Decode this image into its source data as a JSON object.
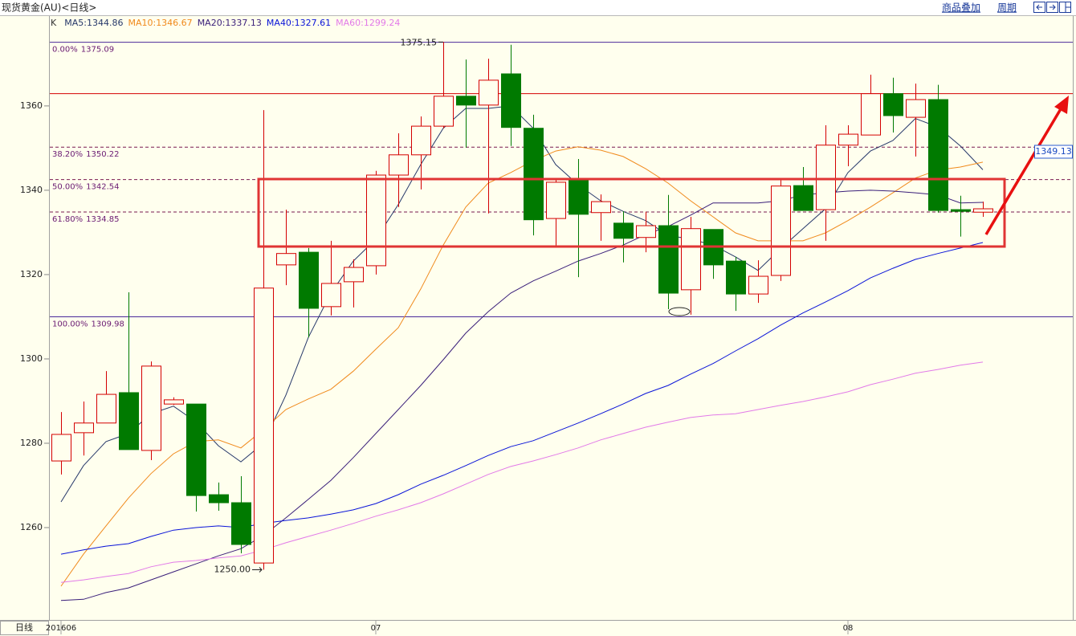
{
  "chart_data": {
    "type": "candlestick",
    "title": "现货黄金(AU)<日线>",
    "period_label": "日线",
    "toolbar": [
      "商品叠加",
      "周期"
    ],
    "legend_prefix": "K",
    "legend_sep": ":",
    "categories": [
      "201606",
      null,
      null,
      null,
      null,
      null,
      null,
      null,
      null,
      null,
      null,
      null,
      null,
      null,
      "07",
      null,
      null,
      null,
      null,
      null,
      null,
      null,
      null,
      null,
      null,
      null,
      null,
      null,
      null,
      null,
      null,
      null,
      null,
      null,
      null,
      "08",
      null,
      null,
      null,
      null,
      null,
      null
    ],
    "open": [
      1275.8,
      1282.5,
      1284.8,
      1292.0,
      1278.3,
      1289.3,
      1289.3,
      1267.8,
      1265.9,
      1251.6,
      1322.3,
      1325.3,
      1312.4,
      1318.3,
      1322.1,
      1343.6,
      1348.4,
      1355.2,
      1362.3,
      1360.2,
      1367.6,
      1354.7,
      1333.3,
      1342.3,
      1334.7,
      1332.2,
      1328.8,
      1331.6,
      1316.4,
      1330.7,
      1323.2,
      1315.4,
      1319.8,
      1341.1,
      1335.4,
      1350.7,
      1353.1,
      1362.9,
      1357.3,
      1361.5,
      1335.4,
      1334.8
    ],
    "high": [
      1287.4,
      1289.9,
      1297.1,
      1315.8,
      1299.4,
      1290.9,
      1289.3,
      1270.7,
      1272.2,
      1359.0,
      1335.4,
      1326.3,
      1328.0,
      1323.6,
      1344.6,
      1353.5,
      1357.5,
      1375.15,
      1371.0,
      1371.2,
      1374.5,
      1357.9,
      1342.9,
      1347.4,
      1339.0,
      1335.0,
      1334.9,
      1338.9,
      1333.7,
      1330.7,
      1324.2,
      1323.4,
      1342.9,
      1345.5,
      1355.4,
      1355.4,
      1367.4,
      1366.7,
      1365.3,
      1365.0,
      1338.7,
      1337.3
    ],
    "low": [
      1272.6,
      1277.1,
      1284.8,
      1278.5,
      1276.0,
      1289.1,
      1263.8,
      1264.0,
      1253.9,
      1250.0,
      1317.5,
      1305.1,
      1310.3,
      1312.2,
      1320.0,
      1336.0,
      1340.2,
      1354.7,
      1350.1,
      1334.5,
      1350.5,
      1329.3,
      1326.9,
      1319.4,
      1328.0,
      1322.9,
      1325.3,
      1311.8,
      1310.5,
      1319.0,
      1311.4,
      1313.3,
      1318.5,
      1335.2,
      1328.0,
      1345.7,
      1353.1,
      1353.7,
      1348.0,
      1334.7,
      1329.0,
      1333.7
    ],
    "close": [
      1282.1,
      1284.8,
      1291.6,
      1278.5,
      1298.3,
      1290.3,
      1267.6,
      1265.9,
      1256.0,
      1316.8,
      1325.0,
      1312.0,
      1317.9,
      1321.7,
      1343.6,
      1348.4,
      1355.2,
      1362.3,
      1360.2,
      1366.1,
      1354.9,
      1333.0,
      1341.9,
      1334.3,
      1337.3,
      1328.6,
      1331.6,
      1315.6,
      1330.9,
      1322.3,
      1315.4,
      1319.6,
      1341.0,
      1335.2,
      1350.7,
      1353.3,
      1362.9,
      1357.7,
      1361.5,
      1335.2,
      1335.0,
      1335.6
    ],
    "up_color": "#d40000",
    "down_color": "#007a00",
    "series": [
      {
        "name": "MA5",
        "color": "#26386a",
        "values": [
          1266.1,
          1274.7,
          1280.4,
          1282.3,
          1287.0,
          1288.8,
          1285.1,
          1279.4,
          1275.6,
          1280.0,
          1291.4,
          1305.1,
          1315.6,
          1323.2,
          1328.4,
          1336.6,
          1346.1,
          1354.7,
          1359.4,
          1359.4,
          1360.0,
          1354.7,
          1346.1,
          1341.3,
          1337.5,
          1335.0,
          1332.8,
          1329.3,
          1328.4,
          1327.0,
          1324.2,
          1321.0,
          1326.1,
          1330.9,
          1335.6,
          1344.2,
          1349.3,
          1351.8,
          1357.0,
          1355.0,
          1350.5,
          1344.86
        ]
      },
      {
        "name": "MA10",
        "color": "#f08a1c",
        "values": [
          1246.1,
          1253.7,
          1260.4,
          1267.0,
          1272.8,
          1277.5,
          1280.4,
          1280.8,
          1278.9,
          1283.2,
          1288.0,
          1290.5,
          1292.8,
          1297.1,
          1302.3,
          1307.4,
          1316.6,
          1327.0,
          1336.0,
          1341.7,
          1344.2,
          1347.0,
          1349.3,
          1350.3,
          1349.5,
          1348.0,
          1345.1,
          1341.7,
          1337.5,
          1333.7,
          1329.9,
          1328.0,
          1328.0,
          1328.0,
          1329.9,
          1332.8,
          1336.0,
          1339.4,
          1342.9,
          1344.8,
          1345.5,
          1346.67
        ]
      },
      {
        "name": "MA20",
        "color": "#3a1f7a",
        "values": [
          1242.7,
          1243.0,
          1244.6,
          1245.7,
          1247.6,
          1249.5,
          1251.4,
          1253.3,
          1255.0,
          1258.1,
          1262.3,
          1266.7,
          1271.2,
          1276.6,
          1282.3,
          1288.0,
          1293.7,
          1299.8,
          1306.1,
          1311.2,
          1315.6,
          1318.5,
          1320.8,
          1323.2,
          1325.0,
          1327.0,
          1329.5,
          1331.4,
          1334.1,
          1337.0,
          1337.0,
          1337.0,
          1337.5,
          1338.9,
          1339.4,
          1339.8,
          1340.0,
          1339.8,
          1339.4,
          1338.9,
          1337.0,
          1337.13
        ]
      },
      {
        "name": "MA40",
        "color": "#0a14d8",
        "values": [
          1253.7,
          1254.7,
          1255.6,
          1256.2,
          1257.9,
          1259.4,
          1260.0,
          1260.4,
          1260.0,
          1261.0,
          1261.7,
          1262.3,
          1263.2,
          1264.2,
          1265.7,
          1267.8,
          1270.3,
          1272.4,
          1274.7,
          1277.1,
          1279.2,
          1280.6,
          1282.7,
          1284.8,
          1287.0,
          1289.3,
          1291.8,
          1293.7,
          1296.4,
          1298.9,
          1301.9,
          1304.8,
          1308.0,
          1310.9,
          1313.5,
          1316.2,
          1319.2,
          1321.5,
          1323.6,
          1325.0,
          1326.3,
          1327.61
        ]
      },
      {
        "name": "MA60",
        "color": "#e27ae8",
        "values": [
          1247.0,
          1247.6,
          1248.4,
          1249.1,
          1250.7,
          1251.8,
          1252.2,
          1252.8,
          1253.3,
          1254.7,
          1256.4,
          1257.9,
          1259.4,
          1261.0,
          1262.7,
          1264.2,
          1265.9,
          1268.0,
          1270.3,
          1272.6,
          1274.5,
          1275.8,
          1277.3,
          1278.9,
          1280.8,
          1282.3,
          1283.8,
          1285.0,
          1286.1,
          1286.7,
          1287.0,
          1288.0,
          1289.0,
          1289.9,
          1291.0,
          1292.2,
          1293.9,
          1295.2,
          1296.6,
          1297.5,
          1298.5,
          1299.24
        ]
      }
    ],
    "ylim": [
      1238.1,
      1377.5
    ],
    "yticks": [
      1260,
      1280,
      1300,
      1320,
      1340,
      1360
    ],
    "fib_color": "#6a1a72",
    "fib_levels": [
      {
        "ratio": "0.00%",
        "value": 1375.09,
        "dashed": false
      },
      {
        "ratio": "38.20%",
        "value": 1350.22,
        "dashed": true
      },
      {
        "ratio": "50.00%",
        "value": 1342.54,
        "dashed": true
      },
      {
        "ratio": "61.80%",
        "value": 1334.85,
        "dashed": true
      },
      {
        "ratio": "100.00%",
        "value": 1309.98,
        "dashed": false
      }
    ],
    "hlines": [
      {
        "value": 1362.9,
        "color": "#d40000"
      }
    ],
    "high_mark": 1375.15,
    "low_mark": {
      "value": 1250,
      "label": "1250.00"
    },
    "price_tag": 1349.13
  }
}
